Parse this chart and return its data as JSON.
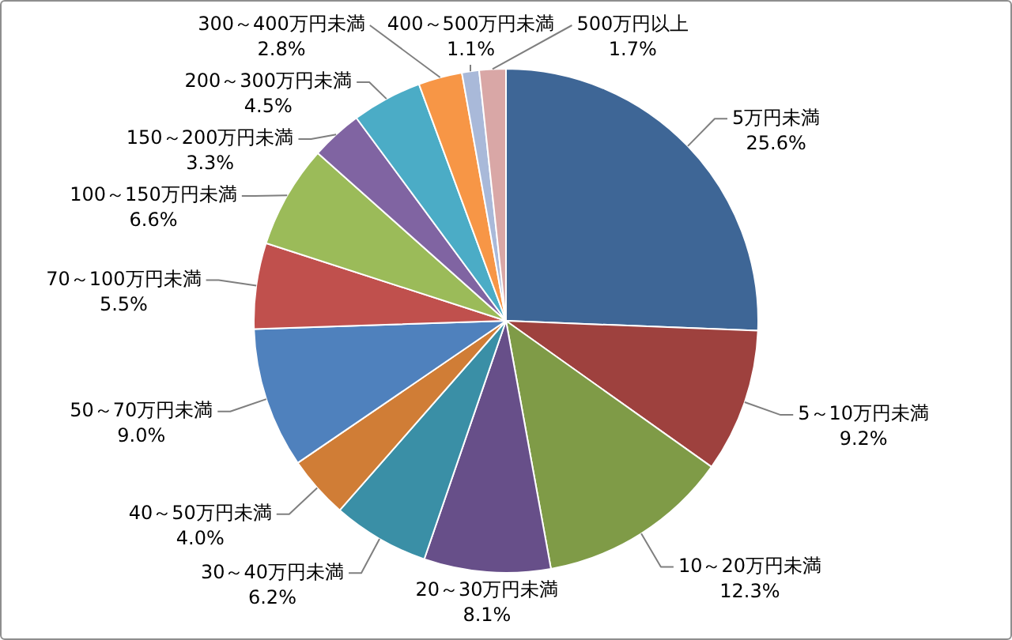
{
  "chart_data": {
    "type": "pie",
    "categories": [
      "5万円未満",
      "5～10万円未満",
      "10～20万円未満",
      "20～30万円未満",
      "30～40万円未満",
      "40～50万円未満",
      "50～70万円未満",
      "70～100万円未満",
      "100～150万円未満",
      "150～200万円未満",
      "200～300万円未満",
      "300～400万円未満",
      "400～500万円未満",
      "500万円以上"
    ],
    "values": [
      25.6,
      9.2,
      12.3,
      8.1,
      6.2,
      4.0,
      9.0,
      5.5,
      6.6,
      3.3,
      4.5,
      2.8,
      1.1,
      1.7
    ],
    "value_labels": [
      "25.6%",
      "9.2%",
      "12.3%",
      "8.1%",
      "6.2%",
      "4.0%",
      "9.0%",
      "5.5%",
      "6.6%",
      "3.3%",
      "4.5%",
      "2.8%",
      "1.1%",
      "1.7%"
    ],
    "colors": [
      "#3e6696",
      "#9e413e",
      "#7f9b47",
      "#674f89",
      "#3a8fa6",
      "#d07d36",
      "#4f81bd",
      "#c0504d",
      "#9bbb59",
      "#8064a2",
      "#4bacc6",
      "#f79646",
      "#a9b9d9",
      "#d9a7a6"
    ],
    "legend": false
  }
}
